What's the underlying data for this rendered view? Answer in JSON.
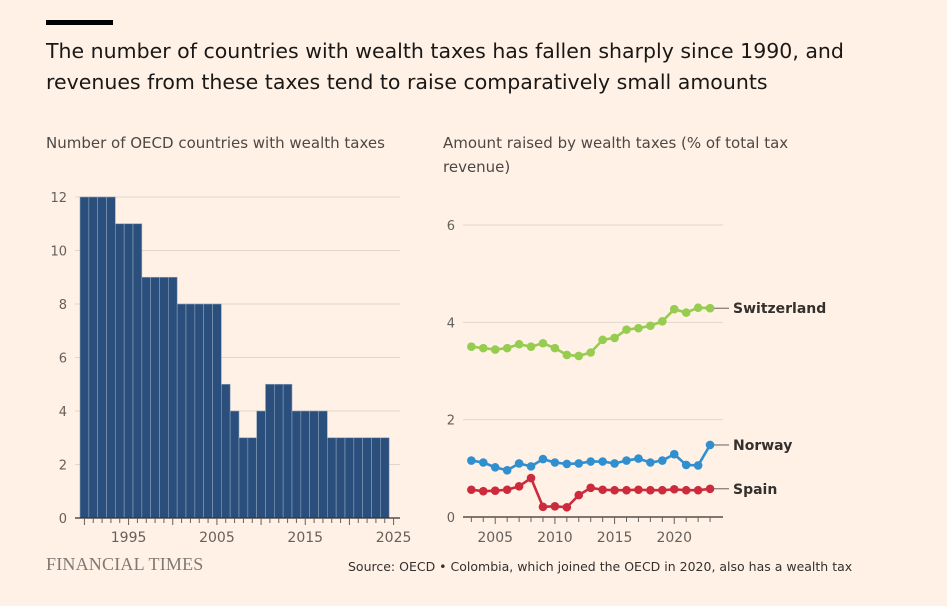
{
  "headline": "The number of countries with wealth taxes has fallen sharply since 1990, and revenues from these taxes tend to raise comparatively small amounts",
  "logo": "FINANCIAL TIMES",
  "source": "Source: OECD • Colombia, which joined the OECD in 2020, also has a wealth tax",
  "colors": {
    "background": "#fff1e5",
    "bar": "#2b4f7c",
    "switzerland": "#96cc4f",
    "norway": "#2f8fcf",
    "spain": "#cc2b3d"
  },
  "chart_data": [
    {
      "type": "bar",
      "title": "Number of OECD countries with wealth taxes",
      "xlim": [
        1989,
        2025
      ],
      "ylim": [
        0,
        12
      ],
      "yticks": [
        0,
        2,
        4,
        6,
        8,
        10,
        12
      ],
      "xticks": [
        1995,
        2005,
        2015,
        2025
      ],
      "grid": true,
      "categories": [
        1990,
        1991,
        1992,
        1993,
        1994,
        1995,
        1996,
        1997,
        1998,
        1999,
        2000,
        2001,
        2002,
        2003,
        2004,
        2005,
        2006,
        2007,
        2008,
        2009,
        2010,
        2011,
        2012,
        2013,
        2014,
        2015,
        2016,
        2017,
        2018,
        2019,
        2020,
        2021,
        2022,
        2023,
        2024
      ],
      "values": [
        12,
        12,
        12,
        12,
        11,
        11,
        11,
        9,
        9,
        9,
        9,
        8,
        8,
        8,
        8,
        8,
        5,
        4,
        3,
        3,
        4,
        5,
        5,
        5,
        4,
        4,
        4,
        4,
        3,
        3,
        3,
        3,
        3,
        3,
        3
      ]
    },
    {
      "type": "line",
      "title": "Amount raised by wealth taxes (% of total tax revenue)",
      "xlim": [
        2002.3,
        2024
      ],
      "ylim": [
        0,
        6
      ],
      "yticks": [
        0,
        2,
        4,
        6
      ],
      "xticks": [
        2005,
        2010,
        2015,
        2020
      ],
      "grid": true,
      "x": [
        2003,
        2004,
        2005,
        2006,
        2007,
        2008,
        2009,
        2010,
        2011,
        2012,
        2013,
        2014,
        2015,
        2016,
        2017,
        2018,
        2019,
        2020,
        2021,
        2022,
        2023
      ],
      "series": [
        {
          "name": "Switzerland",
          "color": "#96cc4f",
          "values": [
            3.5,
            3.47,
            3.44,
            3.47,
            3.55,
            3.5,
            3.57,
            3.47,
            3.33,
            3.31,
            3.38,
            3.64,
            3.68,
            3.85,
            3.88,
            3.93,
            4.02,
            4.27,
            4.2,
            4.3,
            4.29
          ]
        },
        {
          "name": "Norway",
          "color": "#2f8fcf",
          "values": [
            1.16,
            1.12,
            1.02,
            0.96,
            1.1,
            1.04,
            1.19,
            1.12,
            1.09,
            1.1,
            1.14,
            1.14,
            1.1,
            1.16,
            1.2,
            1.12,
            1.16,
            1.29,
            1.07,
            1.06,
            1.48
          ]
        },
        {
          "name": "Spain",
          "color": "#cc2b3d",
          "values": [
            0.56,
            0.53,
            0.54,
            0.56,
            0.63,
            0.8,
            0.21,
            0.22,
            0.2,
            0.45,
            0.6,
            0.56,
            0.55,
            0.55,
            0.56,
            0.55,
            0.55,
            0.57,
            0.55,
            0.55,
            0.58
          ]
        }
      ]
    }
  ]
}
